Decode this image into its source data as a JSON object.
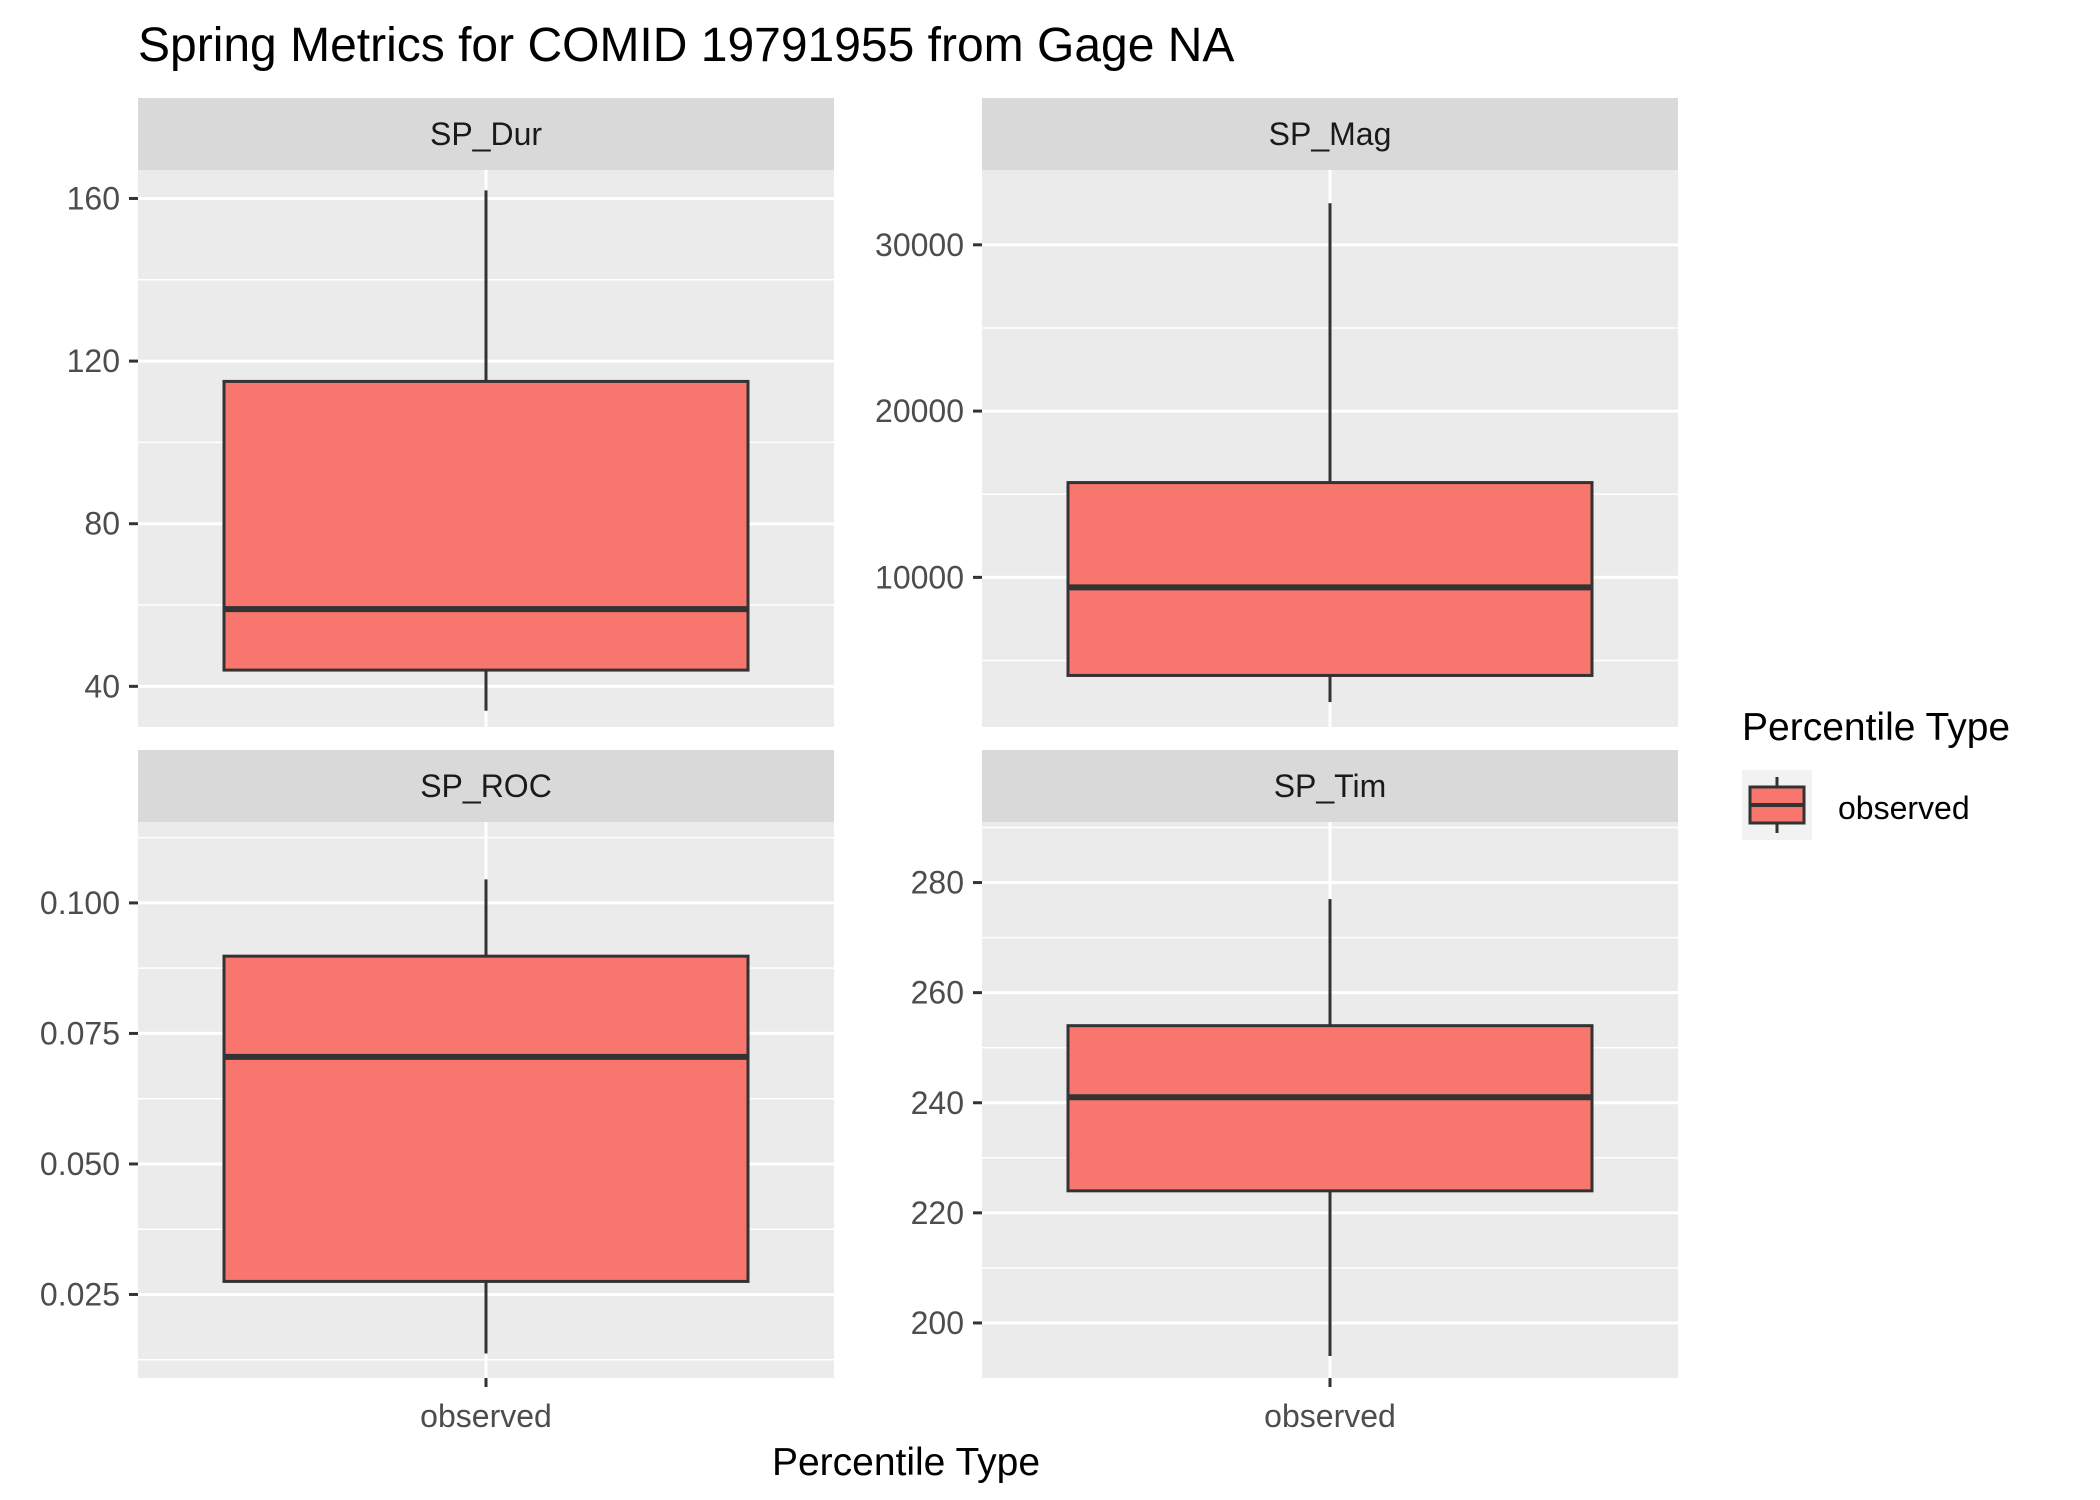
{
  "chart_data": {
    "type": "boxplot",
    "title": "Spring Metrics for COMID 19791955 from Gage NA",
    "xlabel": "Percentile Type",
    "ylabel": "",
    "legend": {
      "title": "Percentile Type",
      "position": "right",
      "entries": [
        "observed"
      ]
    },
    "colors": {
      "box_fill": "#f8766d",
      "box_stroke": "#333333",
      "panel_bg": "#ebebeb",
      "strip_bg": "#d9d9d9",
      "grid": "#ffffff"
    },
    "grid": true,
    "categories": [
      "observed"
    ],
    "facets": [
      {
        "name": "SP_Dur",
        "ylim": [
          30,
          167
        ],
        "ticks": [
          40,
          80,
          120,
          160
        ],
        "tick_labels": [
          "40",
          "80",
          "120",
          "160"
        ],
        "minor_ticks": [
          60,
          100,
          140
        ],
        "x_tick_labels": [],
        "box": {
          "category": "observed",
          "min": 34,
          "q1": 44,
          "median": 59,
          "q3": 115,
          "max": 162
        }
      },
      {
        "name": "SP_Mag",
        "ylim": [
          1000,
          34500
        ],
        "ticks": [
          10000,
          20000,
          30000
        ],
        "tick_labels": [
          "10000",
          "20000",
          "30000"
        ],
        "minor_ticks": [
          5000,
          15000,
          25000
        ],
        "x_tick_labels": [],
        "box": {
          "category": "observed",
          "min": 2500,
          "q1": 4100,
          "median": 9400,
          "q3": 15700,
          "max": 32500
        }
      },
      {
        "name": "SP_ROC",
        "ylim": [
          0.009,
          0.1155
        ],
        "ticks": [
          0.025,
          0.05,
          0.075,
          0.1
        ],
        "tick_labels": [
          "0.025",
          "0.050",
          "0.075",
          "0.100"
        ],
        "minor_ticks": [
          0.0125,
          0.0375,
          0.0625,
          0.0875,
          0.1125
        ],
        "x_tick_labels": [
          "observed"
        ],
        "box": {
          "category": "observed",
          "min": 0.0137,
          "q1": 0.0275,
          "median": 0.0705,
          "q3": 0.0898,
          "max": 0.1045
        }
      },
      {
        "name": "SP_Tim",
        "ylim": [
          190,
          291
        ],
        "ticks": [
          200,
          220,
          240,
          260,
          280
        ],
        "tick_labels": [
          "200",
          "220",
          "240",
          "260",
          "280"
        ],
        "minor_ticks": [
          210,
          230,
          250,
          270,
          290
        ],
        "x_tick_labels": [
          "observed"
        ],
        "box": {
          "category": "observed",
          "min": 194,
          "q1": 224,
          "median": 241,
          "q3": 254,
          "max": 277
        }
      }
    ]
  }
}
